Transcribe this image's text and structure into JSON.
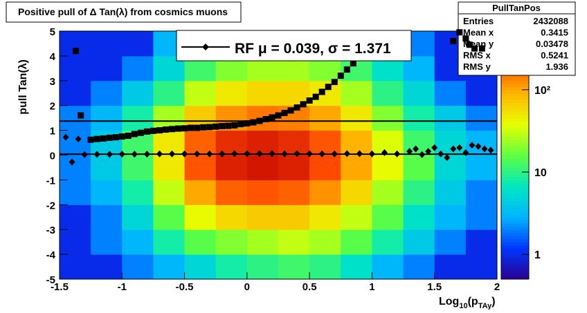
{
  "chart_data": {
    "type": "heatmap",
    "title": "Positive pull of Δ Tan(λ) from cosmics muons",
    "ylabel": "pull Tan(λ)",
    "xlabel_parts": [
      "Log",
      "10",
      "(p",
      "TAy",
      ")"
    ],
    "xlim": [
      -1.5,
      2
    ],
    "ylim": [
      -5,
      5
    ],
    "zlim": [
      0.5,
      516
    ],
    "xticks": [
      -1.5,
      -1,
      -0.5,
      0,
      0.5,
      1,
      1.5,
      2
    ],
    "yticks": [
      -5,
      -4,
      -3,
      -2,
      -1,
      0,
      1,
      2,
      3,
      4,
      5
    ],
    "zticks": [
      1,
      10,
      {
        "value": 100,
        "label": "10²"
      }
    ],
    "log_z": true,
    "palette": [
      "#2a0090",
      "#0036ff",
      "#00b4ff",
      "#00e8c0",
      "#60ff40",
      "#e8ff00",
      "#ffb400",
      "#ff4a00",
      "#c00000"
    ],
    "xbins": [
      -1.5,
      -1.25,
      -1,
      -0.75,
      -0.5,
      -0.25,
      0,
      0.25,
      0.5,
      0.75,
      1,
      1.25,
      1.5,
      1.75,
      2
    ],
    "ybins": [
      -5,
      -4,
      -3,
      -2,
      -1,
      0,
      1,
      2,
      3,
      4,
      5
    ],
    "z": [
      [
        1,
        1,
        2,
        3,
        5,
        8,
        10,
        12,
        10,
        6,
        3,
        2,
        1,
        1
      ],
      [
        1,
        2,
        3,
        8,
        15,
        20,
        25,
        30,
        25,
        15,
        8,
        4,
        2,
        1
      ],
      [
        1,
        2,
        5,
        15,
        40,
        60,
        70,
        70,
        50,
        30,
        15,
        6,
        3,
        2
      ],
      [
        2,
        3,
        8,
        30,
        100,
        180,
        200,
        180,
        120,
        60,
        25,
        10,
        4,
        2
      ],
      [
        2,
        4,
        12,
        50,
        200,
        350,
        400,
        350,
        220,
        100,
        40,
        15,
        5,
        3
      ],
      [
        2,
        4,
        12,
        50,
        180,
        300,
        350,
        300,
        200,
        90,
        35,
        12,
        5,
        3
      ],
      [
        2,
        3,
        8,
        25,
        70,
        120,
        150,
        140,
        100,
        50,
        20,
        8,
        4,
        2
      ],
      [
        1,
        2,
        4,
        10,
        30,
        50,
        60,
        60,
        50,
        25,
        10,
        5,
        2,
        1
      ],
      [
        1,
        1,
        2,
        5,
        12,
        20,
        25,
        25,
        20,
        12,
        6,
        3,
        1,
        1
      ],
      [
        1,
        1,
        1,
        3,
        6,
        10,
        12,
        12,
        10,
        6,
        3,
        2,
        1,
        1
      ]
    ],
    "series": [
      {
        "marker": "square",
        "color": "#000000",
        "x": [
          -1.37,
          -1.33,
          -1.25,
          -1.2,
          -1.15,
          -1.1,
          -1.05,
          -1,
          -0.95,
          -0.9,
          -0.85,
          -0.8,
          -0.75,
          -0.7,
          -0.65,
          -0.6,
          -0.55,
          -0.5,
          -0.45,
          -0.4,
          -0.35,
          -0.3,
          -0.25,
          -0.2,
          -0.15,
          -0.1,
          -0.05,
          0,
          0.05,
          0.1,
          0.15,
          0.2,
          0.25,
          0.3,
          0.35,
          0.4,
          0.45,
          0.5,
          0.55,
          0.6,
          0.65,
          0.7,
          0.75,
          0.8,
          0.85,
          1.65,
          1.7,
          1.75,
          1.78,
          1.82,
          1.88
        ],
        "values": [
          4.2,
          1.6,
          0.62,
          0.65,
          0.67,
          0.7,
          0.72,
          0.75,
          0.78,
          0.85,
          0.9,
          0.95,
          0.98,
          1.0,
          1.03,
          1.05,
          1.07,
          1.08,
          1.1,
          1.1,
          1.12,
          1.13,
          1.15,
          1.17,
          1.18,
          1.2,
          1.25,
          1.28,
          1.32,
          1.38,
          1.45,
          1.52,
          1.6,
          1.7,
          1.8,
          1.92,
          2.05,
          2.2,
          2.35,
          2.55,
          2.75,
          2.95,
          3.2,
          3.45,
          3.7,
          4.6,
          4.95,
          4.7,
          4.45,
          4.3,
          4.3
        ]
      },
      {
        "marker": "diamond",
        "color": "#000000",
        "x": [
          -1.45,
          -1.4,
          -1.35,
          -1.3,
          -1.2,
          -1.1,
          -1,
          -0.9,
          -0.8,
          -0.7,
          -0.6,
          -0.5,
          -0.4,
          -0.3,
          -0.2,
          -0.1,
          0,
          0.1,
          0.2,
          0.3,
          0.4,
          0.5,
          0.6,
          0.7,
          0.8,
          0.9,
          1,
          1.1,
          1.2,
          1.3,
          1.35,
          1.4,
          1.45,
          1.5,
          1.55,
          1.6,
          1.65,
          1.7,
          1.75,
          1.8,
          1.85,
          1.9,
          1.95
        ],
        "values": [
          0.72,
          -0.28,
          0.65,
          0.02,
          0.03,
          0.03,
          0.04,
          0.04,
          0.04,
          0.05,
          0.05,
          0.05,
          0.05,
          0.05,
          0.05,
          0.06,
          0.06,
          0.06,
          0.06,
          0.05,
          0.06,
          0.06,
          0.05,
          0.05,
          0.06,
          0.06,
          0.05,
          0.1,
          0.05,
          0.15,
          0.25,
          0.02,
          0.15,
          0.3,
          0.05,
          -0.1,
          0.25,
          0.3,
          0.1,
          0.4,
          0.35,
          0.25,
          0.2
        ]
      }
    ],
    "fit": {
      "mu": 0.039,
      "sigma": 1.371
    },
    "legend_text": "RF μ =  0.039, σ =   1.371",
    "stats": {
      "name": "PullTanPos",
      "rows": [
        {
          "label": "Entries",
          "value": 2432088
        },
        {
          "label": "Mean x",
          "value": 0.3415
        },
        {
          "label": "Mean y",
          "value": 0.03478
        },
        {
          "label": "RMS x",
          "value": 0.5241
        },
        {
          "label": "RMS y",
          "value": 1.936
        }
      ]
    }
  }
}
